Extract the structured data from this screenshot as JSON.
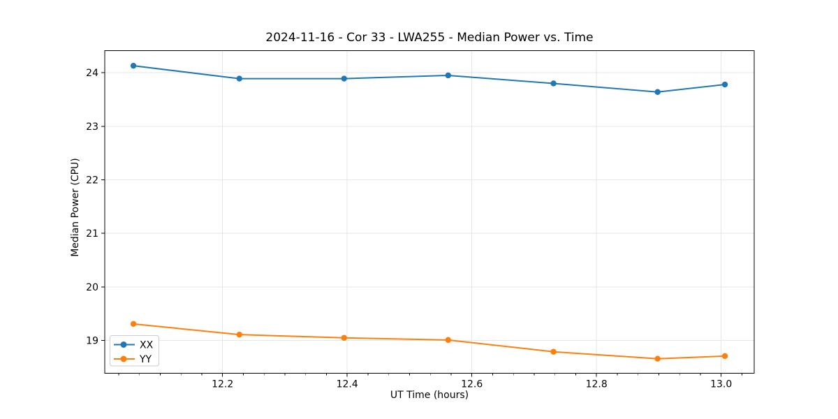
{
  "chart_data": {
    "type": "line",
    "title": "2024-11-16 - Cor 33 - LWA255 - Median Power vs. Time",
    "xlabel": "UT Time (hours)",
    "ylabel": "Median Power (CPU)",
    "x": [
      12.057,
      12.227,
      12.395,
      12.562,
      12.731,
      12.898,
      13.006
    ],
    "series": [
      {
        "name": "XX",
        "color": "#1f77b4",
        "values": [
          24.13,
          23.89,
          23.89,
          23.95,
          23.8,
          23.64,
          23.78
        ]
      },
      {
        "name": "YY",
        "color": "#ff7f0e",
        "values": [
          19.31,
          19.11,
          19.05,
          19.01,
          18.79,
          18.66,
          18.71
        ]
      }
    ],
    "xlim": [
      12.011,
      13.053
    ],
    "ylim": [
      18.39,
      24.41
    ],
    "xticks": {
      "values": [
        12.2,
        12.4,
        12.6,
        12.8,
        13.0
      ],
      "labels": [
        "12.2",
        "12.4",
        "12.6",
        "12.8",
        "13.0"
      ]
    },
    "yticks": {
      "values": [
        19,
        20,
        21,
        22,
        23,
        24
      ],
      "labels": [
        "19",
        "20",
        "21",
        "22",
        "23",
        "24"
      ]
    },
    "x_minor_step": 0.0333333,
    "grid": true,
    "legend": {
      "position": "lower left",
      "entries": [
        "XX",
        "YY"
      ]
    },
    "colors": {
      "background": "#ffffff",
      "grid": "#e6e6e6",
      "spine": "#000000",
      "tick": "#000000",
      "legend_border": "#cccccc",
      "legend_background": "#ffffff"
    }
  }
}
